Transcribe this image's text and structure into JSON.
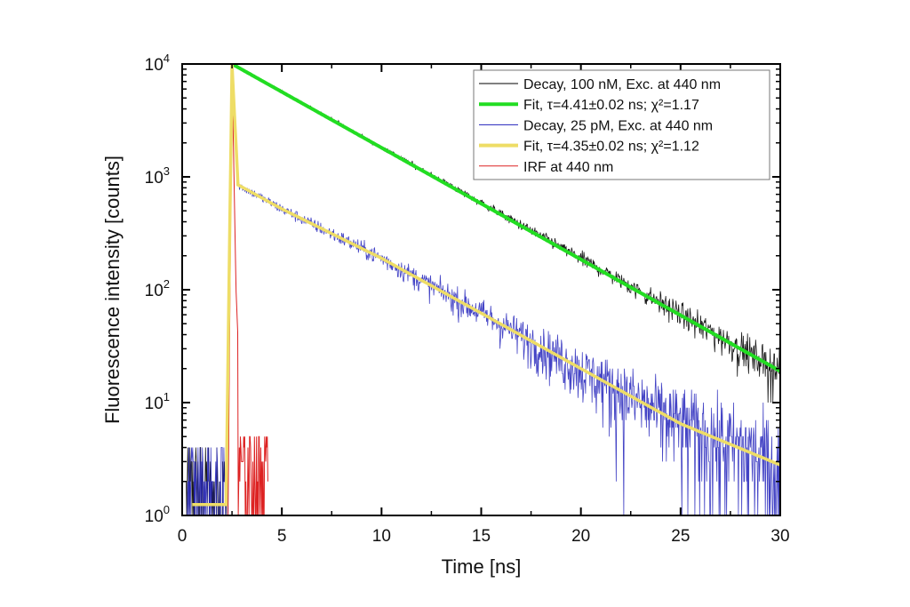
{
  "chart_data": {
    "type": "line",
    "title": "",
    "xlabel": "Time [ns]",
    "ylabel": "Fluorescence intensity [counts]",
    "xlim": [
      0,
      30
    ],
    "ylim": [
      1,
      10000
    ],
    "yscale": "log",
    "grid": false,
    "legend_position": "top-right",
    "x_ticks": [
      "0",
      "5",
      "10",
      "15",
      "20",
      "25",
      "30"
    ],
    "x_tick_values": [
      0,
      5,
      10,
      15,
      20,
      25,
      30
    ],
    "y_ticks": [
      {
        "base": "10",
        "exp": "0",
        "value": 1
      },
      {
        "base": "10",
        "exp": "1",
        "value": 10
      },
      {
        "base": "10",
        "exp": "2",
        "value": 100
      },
      {
        "base": "10",
        "exp": "3",
        "value": 1000
      },
      {
        "base": "10",
        "exp": "4",
        "value": 10000
      }
    ],
    "series": [
      {
        "name": "Decay, 100 nM, Exc. at 440 nm",
        "color": "#000000",
        "kind": "noisy-decay",
        "x": [
          0.2,
          2.2,
          2.5,
          5,
          10,
          15,
          20,
          25,
          30
        ],
        "y": [
          2,
          2,
          10000,
          5700,
          1830,
          590,
          190,
          61,
          19
        ]
      },
      {
        "name": "Fit, τ=4.41±0.02 ns; χ²=1.17",
        "color": "#22dd22",
        "kind": "fit",
        "x": [
          2.5,
          30
        ],
        "y": [
          10000,
          19
        ],
        "tau": 4.41
      },
      {
        "name": "Decay, 25 pM, Exc. at 440 nm",
        "color": "#2222bb",
        "kind": "noisy-decay",
        "x": [
          0.2,
          2.2,
          2.5,
          2.8,
          5,
          10,
          15,
          20,
          25,
          30
        ],
        "y": [
          1.5,
          1.5,
          9500,
          850,
          520,
          190,
          62,
          20,
          6.5,
          2.8
        ]
      },
      {
        "name": "Fit, τ=4.35±0.02 ns; χ²=1.12",
        "color": "#eedd66",
        "kind": "fit",
        "x": [
          0.5,
          2.2,
          2.5,
          2.8,
          5,
          10,
          15,
          20,
          25,
          30
        ],
        "y": [
          1.25,
          1.25,
          9800,
          850,
          520,
          190,
          62,
          20,
          6.5,
          2.8
        ],
        "tau": 4.35
      },
      {
        "name": "IRF at 440 nm",
        "color": "#dd2222",
        "kind": "irf",
        "x": [
          2.3,
          2.5,
          2.7,
          3.0,
          3.5,
          4.3
        ],
        "y": [
          1,
          9000,
          100,
          5,
          3,
          1
        ]
      }
    ]
  }
}
